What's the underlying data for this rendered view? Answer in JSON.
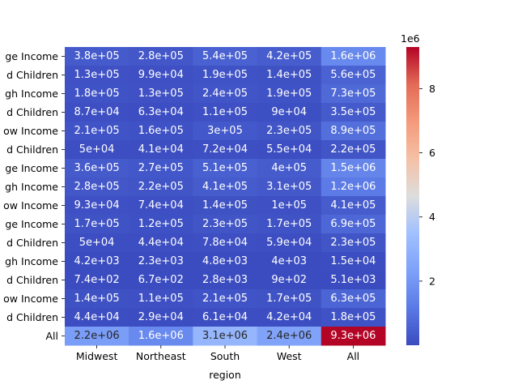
{
  "chart_data": {
    "type": "heatmap",
    "title": "",
    "xlabel": "region",
    "ylabel": "",
    "x_categories": [
      "Midwest",
      "Northeast",
      "South",
      "West",
      "All"
    ],
    "y_categories": [
      "ge Income",
      "d Children",
      "gh Income",
      "d Children",
      "ow Income",
      "d Children",
      "ge Income",
      "gh Income",
      "ow Income",
      "ge Income",
      "d Children",
      "gh Income",
      "d Children",
      "ow Income",
      "d Children",
      "All"
    ],
    "values": [
      [
        380000,
        280000,
        540000,
        420000,
        1600000
      ],
      [
        130000,
        99000,
        190000,
        140000,
        560000
      ],
      [
        180000,
        130000,
        240000,
        190000,
        730000
      ],
      [
        87000,
        63000,
        110000,
        90000,
        350000
      ],
      [
        210000,
        160000,
        300000,
        230000,
        890000
      ],
      [
        50000,
        41000,
        72000,
        55000,
        220000
      ],
      [
        360000,
        270000,
        510000,
        400000,
        1500000
      ],
      [
        280000,
        220000,
        410000,
        310000,
        1200000
      ],
      [
        93000,
        74000,
        140000,
        100000,
        410000
      ],
      [
        170000,
        120000,
        230000,
        170000,
        690000
      ],
      [
        50000,
        44000,
        78000,
        59000,
        230000
      ],
      [
        4200,
        2300,
        4800,
        4000,
        15000
      ],
      [
        740,
        670,
        2800,
        900,
        5100
      ],
      [
        140000,
        110000,
        210000,
        170000,
        630000
      ],
      [
        44000,
        29000,
        61000,
        42000,
        180000
      ],
      [
        2200000,
        1600000,
        3100000,
        2400000,
        9300000
      ]
    ],
    "labels": [
      [
        "3.8e+05",
        "2.8e+05",
        "5.4e+05",
        "4.2e+05",
        "1.6e+06"
      ],
      [
        "1.3e+05",
        "9.9e+04",
        "1.9e+05",
        "1.4e+05",
        "5.6e+05"
      ],
      [
        "1.8e+05",
        "1.3e+05",
        "2.4e+05",
        "1.9e+05",
        "7.3e+05"
      ],
      [
        "8.7e+04",
        "6.3e+04",
        "1.1e+05",
        "9e+04",
        "3.5e+05"
      ],
      [
        "2.1e+05",
        "1.6e+05",
        "3e+05",
        "2.3e+05",
        "8.9e+05"
      ],
      [
        "5e+04",
        "4.1e+04",
        "7.2e+04",
        "5.5e+04",
        "2.2e+05"
      ],
      [
        "3.6e+05",
        "2.7e+05",
        "5.1e+05",
        "4e+05",
        "1.5e+06"
      ],
      [
        "2.8e+05",
        "2.2e+05",
        "4.1e+05",
        "3.1e+05",
        "1.2e+06"
      ],
      [
        "9.3e+04",
        "7.4e+04",
        "1.4e+05",
        "1e+05",
        "4.1e+05"
      ],
      [
        "1.7e+05",
        "1.2e+05",
        "2.3e+05",
        "1.7e+05",
        "6.9e+05"
      ],
      [
        "5e+04",
        "4.4e+04",
        "7.8e+04",
        "5.9e+04",
        "2.3e+05"
      ],
      [
        "4.2e+03",
        "2.3e+03",
        "4.8e+03",
        "4e+03",
        "1.5e+04"
      ],
      [
        "7.4e+02",
        "6.7e+02",
        "2.8e+03",
        "9e+02",
        "5.1e+03"
      ],
      [
        "1.4e+05",
        "1.1e+05",
        "2.1e+05",
        "1.7e+05",
        "6.3e+05"
      ],
      [
        "4.4e+04",
        "2.9e+04",
        "6.1e+04",
        "4.2e+04",
        "1.8e+05"
      ],
      [
        "2.2e+06",
        "1.6e+06",
        "3.1e+06",
        "2.4e+06",
        "9.3e+06"
      ]
    ],
    "colorbar": {
      "colormap": "coolwarm",
      "vmin": 670,
      "vmax": 9300000,
      "ticks": [
        2000000,
        4000000,
        6000000,
        8000000
      ],
      "tick_labels": [
        "2",
        "4",
        "6",
        "8"
      ],
      "offset_label": "1e6"
    },
    "grid": false,
    "legend": "colorbar-right"
  }
}
